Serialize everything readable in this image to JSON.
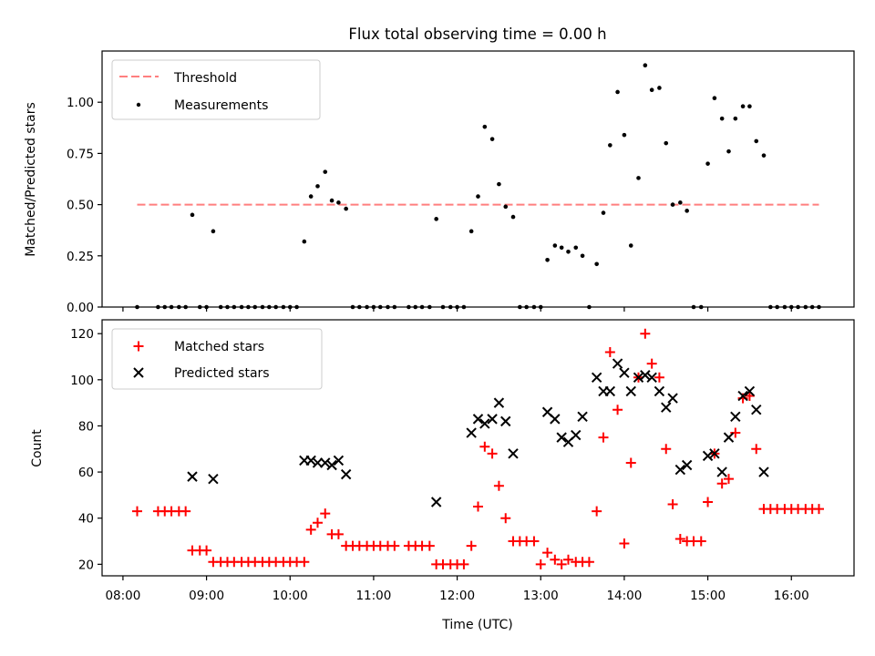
{
  "figure": {
    "title": "Flux total observing time = 0.00 h",
    "xlabel": "Time (UTC)",
    "x_ticks": [
      "08:00",
      "09:00",
      "10:00",
      "11:00",
      "12:00",
      "13:00",
      "14:00",
      "15:00",
      "16:00"
    ]
  },
  "chart_data": [
    {
      "type": "scatter",
      "title": "Flux total observing time = 0.00 h",
      "xlabel": "",
      "ylabel": "Matched/Predicted stars",
      "x_unit": "hours UTC",
      "xlim": [
        7.75,
        16.75
      ],
      "ylim": [
        0,
        1.25
      ],
      "yticks": [
        0.0,
        0.25,
        0.5,
        0.75,
        1.0
      ],
      "ytick_labels": [
        "0.00",
        "0.25",
        "0.50",
        "0.75",
        "1.00"
      ],
      "legend": {
        "position": "upper left",
        "entries": [
          "Threshold",
          "Measurements"
        ]
      },
      "threshold": {
        "name": "Threshold",
        "value": 0.5,
        "x_range": [
          8.17,
          16.33
        ],
        "color": "#ff7f7f",
        "style": "dashed"
      },
      "series": [
        {
          "name": "Measurements",
          "color": "#000000",
          "marker": "dot",
          "points": [
            [
              8.17,
              0
            ],
            [
              8.42,
              0
            ],
            [
              8.5,
              0
            ],
            [
              8.58,
              0
            ],
            [
              8.67,
              0
            ],
            [
              8.75,
              0
            ],
            [
              8.83,
              0.45
            ],
            [
              8.92,
              0
            ],
            [
              9.0,
              0
            ],
            [
              9.08,
              0.37
            ],
            [
              9.17,
              0
            ],
            [
              9.25,
              0
            ],
            [
              9.33,
              0
            ],
            [
              9.42,
              0
            ],
            [
              9.5,
              0
            ],
            [
              9.58,
              0
            ],
            [
              9.67,
              0
            ],
            [
              9.75,
              0
            ],
            [
              9.83,
              0
            ],
            [
              9.92,
              0
            ],
            [
              10.0,
              0
            ],
            [
              10.08,
              0
            ],
            [
              10.17,
              0.32
            ],
            [
              10.25,
              0.54
            ],
            [
              10.33,
              0.59
            ],
            [
              10.42,
              0.66
            ],
            [
              10.5,
              0.52
            ],
            [
              10.58,
              0.51
            ],
            [
              10.67,
              0.48
            ],
            [
              10.75,
              0
            ],
            [
              10.83,
              0
            ],
            [
              10.92,
              0
            ],
            [
              11.0,
              0
            ],
            [
              11.08,
              0
            ],
            [
              11.17,
              0
            ],
            [
              11.25,
              0
            ],
            [
              11.42,
              0
            ],
            [
              11.5,
              0
            ],
            [
              11.58,
              0
            ],
            [
              11.67,
              0
            ],
            [
              11.75,
              0.43
            ],
            [
              11.83,
              0
            ],
            [
              11.92,
              0
            ],
            [
              12.0,
              0
            ],
            [
              12.08,
              0
            ],
            [
              12.17,
              0.37
            ],
            [
              12.25,
              0.54
            ],
            [
              12.33,
              0.88
            ],
            [
              12.42,
              0.82
            ],
            [
              12.5,
              0.6
            ],
            [
              12.58,
              0.49
            ],
            [
              12.67,
              0.44
            ],
            [
              12.75,
              0
            ],
            [
              12.83,
              0
            ],
            [
              12.92,
              0
            ],
            [
              13.0,
              0
            ],
            [
              13.08,
              0.23
            ],
            [
              13.17,
              0.3
            ],
            [
              13.25,
              0.29
            ],
            [
              13.33,
              0.27
            ],
            [
              13.42,
              0.29
            ],
            [
              13.5,
              0.25
            ],
            [
              13.58,
              0
            ],
            [
              13.67,
              0.21
            ],
            [
              13.75,
              0.46
            ],
            [
              13.83,
              0.79
            ],
            [
              13.92,
              1.05
            ],
            [
              14.0,
              0.84
            ],
            [
              14.08,
              0.3
            ],
            [
              14.17,
              0.63
            ],
            [
              14.25,
              1.18
            ],
            [
              14.33,
              1.06
            ],
            [
              14.42,
              1.07
            ],
            [
              14.5,
              0.8
            ],
            [
              14.58,
              0.5
            ],
            [
              14.67,
              0.51
            ],
            [
              14.75,
              0.47
            ],
            [
              14.83,
              0
            ],
            [
              14.92,
              0
            ],
            [
              15.0,
              0.7
            ],
            [
              15.08,
              1.02
            ],
            [
              15.17,
              0.92
            ],
            [
              15.25,
              0.76
            ],
            [
              15.33,
              0.92
            ],
            [
              15.42,
              0.98
            ],
            [
              15.5,
              0.98
            ],
            [
              15.58,
              0.81
            ],
            [
              15.67,
              0.74
            ],
            [
              15.75,
              0
            ],
            [
              15.83,
              0
            ],
            [
              15.92,
              0
            ],
            [
              16.0,
              0
            ],
            [
              16.08,
              0
            ],
            [
              16.17,
              0
            ],
            [
              16.25,
              0
            ],
            [
              16.33,
              0
            ]
          ]
        }
      ]
    },
    {
      "type": "scatter",
      "title": "",
      "xlabel": "Time (UTC)",
      "ylabel": "Count",
      "x_unit": "hours UTC",
      "xlim": [
        7.75,
        16.75
      ],
      "ylim": [
        15,
        126
      ],
      "yticks": [
        20,
        40,
        60,
        80,
        100,
        120
      ],
      "ytick_labels": [
        "20",
        "40",
        "60",
        "80",
        "100",
        "120"
      ],
      "legend": {
        "position": "upper left",
        "entries": [
          "Matched stars",
          "Predicted stars"
        ]
      },
      "series": [
        {
          "name": "Matched stars",
          "color": "#ff0000",
          "marker": "plus",
          "points": [
            [
              8.17,
              43
            ],
            [
              8.42,
              43
            ],
            [
              8.5,
              43
            ],
            [
              8.58,
              43
            ],
            [
              8.67,
              43
            ],
            [
              8.75,
              43
            ],
            [
              8.83,
              26
            ],
            [
              8.92,
              26
            ],
            [
              9.0,
              26
            ],
            [
              9.08,
              21
            ],
            [
              9.17,
              21
            ],
            [
              9.25,
              21
            ],
            [
              9.33,
              21
            ],
            [
              9.42,
              21
            ],
            [
              9.5,
              21
            ],
            [
              9.58,
              21
            ],
            [
              9.67,
              21
            ],
            [
              9.75,
              21
            ],
            [
              9.83,
              21
            ],
            [
              9.92,
              21
            ],
            [
              10.0,
              21
            ],
            [
              10.08,
              21
            ],
            [
              10.17,
              21
            ],
            [
              10.25,
              35
            ],
            [
              10.33,
              38
            ],
            [
              10.42,
              42
            ],
            [
              10.5,
              33
            ],
            [
              10.58,
              33
            ],
            [
              10.67,
              28
            ],
            [
              10.75,
              28
            ],
            [
              10.83,
              28
            ],
            [
              10.92,
              28
            ],
            [
              11.0,
              28
            ],
            [
              11.08,
              28
            ],
            [
              11.17,
              28
            ],
            [
              11.25,
              28
            ],
            [
              11.42,
              28
            ],
            [
              11.5,
              28
            ],
            [
              11.58,
              28
            ],
            [
              11.67,
              28
            ],
            [
              11.75,
              20
            ],
            [
              11.83,
              20
            ],
            [
              11.92,
              20
            ],
            [
              12.0,
              20
            ],
            [
              12.08,
              20
            ],
            [
              12.17,
              28
            ],
            [
              12.25,
              45
            ],
            [
              12.33,
              71
            ],
            [
              12.42,
              68
            ],
            [
              12.5,
              54
            ],
            [
              12.58,
              40
            ],
            [
              12.67,
              30
            ],
            [
              12.75,
              30
            ],
            [
              12.83,
              30
            ],
            [
              12.92,
              30
            ],
            [
              13.0,
              20
            ],
            [
              13.08,
              25
            ],
            [
              13.17,
              22
            ],
            [
              13.25,
              20
            ],
            [
              13.33,
              22
            ],
            [
              13.42,
              21
            ],
            [
              13.5,
              21
            ],
            [
              13.58,
              21
            ],
            [
              13.67,
              43
            ],
            [
              13.75,
              75
            ],
            [
              13.83,
              112
            ],
            [
              13.92,
              87
            ],
            [
              14.0,
              29
            ],
            [
              14.08,
              64
            ],
            [
              14.17,
              101
            ],
            [
              14.25,
              120
            ],
            [
              14.33,
              107
            ],
            [
              14.42,
              101
            ],
            [
              14.5,
              70
            ],
            [
              14.58,
              46
            ],
            [
              14.67,
              31
            ],
            [
              14.75,
              30
            ],
            [
              14.83,
              30
            ],
            [
              14.92,
              30
            ],
            [
              15.0,
              47
            ],
            [
              15.08,
              68
            ],
            [
              15.17,
              55
            ],
            [
              15.25,
              57
            ],
            [
              15.33,
              77
            ],
            [
              15.42,
              92
            ],
            [
              15.5,
              93
            ],
            [
              15.58,
              70
            ],
            [
              15.67,
              44
            ],
            [
              15.75,
              44
            ],
            [
              15.83,
              44
            ],
            [
              15.92,
              44
            ],
            [
              16.0,
              44
            ],
            [
              16.08,
              44
            ],
            [
              16.17,
              44
            ],
            [
              16.25,
              44
            ],
            [
              16.33,
              44
            ]
          ]
        },
        {
          "name": "Predicted stars",
          "color": "#000000",
          "marker": "x",
          "points": [
            [
              8.83,
              58
            ],
            [
              9.08,
              57
            ],
            [
              10.17,
              65
            ],
            [
              10.25,
              65
            ],
            [
              10.33,
              64
            ],
            [
              10.42,
              64
            ],
            [
              10.5,
              63
            ],
            [
              10.58,
              65
            ],
            [
              10.67,
              59
            ],
            [
              11.75,
              47
            ],
            [
              12.17,
              77
            ],
            [
              12.25,
              83
            ],
            [
              12.33,
              81
            ],
            [
              12.42,
              83
            ],
            [
              12.5,
              90
            ],
            [
              12.58,
              82
            ],
            [
              12.67,
              68
            ],
            [
              13.08,
              86
            ],
            [
              13.17,
              83
            ],
            [
              13.25,
              75
            ],
            [
              13.33,
              73
            ],
            [
              13.42,
              76
            ],
            [
              13.5,
              84
            ],
            [
              13.67,
              101
            ],
            [
              13.75,
              95
            ],
            [
              13.83,
              95
            ],
            [
              13.92,
              107
            ],
            [
              14.0,
              103
            ],
            [
              14.08,
              95
            ],
            [
              14.17,
              101
            ],
            [
              14.25,
              102
            ],
            [
              14.33,
              101
            ],
            [
              14.42,
              95
            ],
            [
              14.5,
              88
            ],
            [
              14.58,
              92
            ],
            [
              14.67,
              61
            ],
            [
              14.75,
              63
            ],
            [
              15.0,
              67
            ],
            [
              15.08,
              68
            ],
            [
              15.17,
              60
            ],
            [
              15.25,
              75
            ],
            [
              15.33,
              84
            ],
            [
              15.42,
              93
            ],
            [
              15.5,
              95
            ],
            [
              15.58,
              87
            ],
            [
              15.67,
              60
            ]
          ]
        }
      ]
    }
  ]
}
